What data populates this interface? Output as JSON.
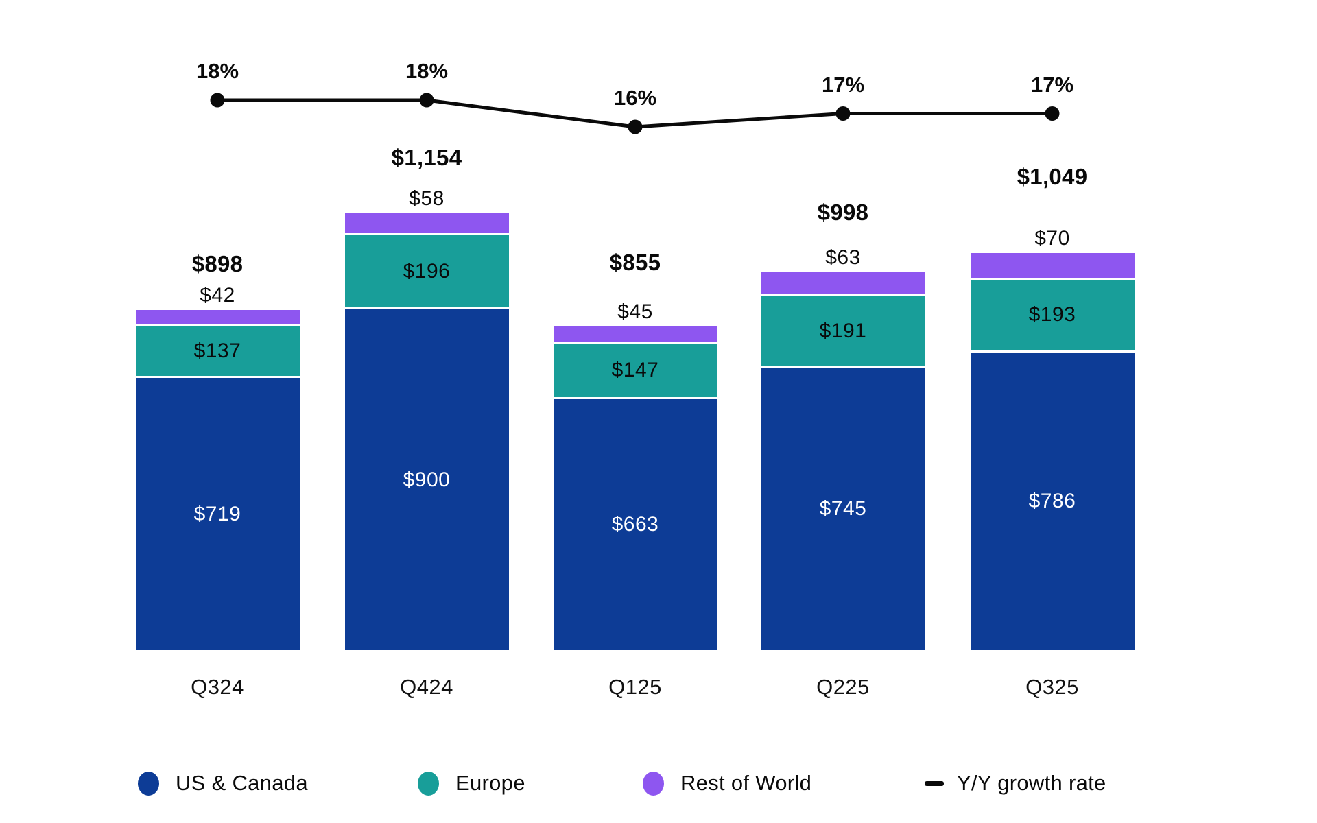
{
  "chart_data": {
    "type": "bar",
    "subtype": "stacked-column-with-growth-line",
    "title": "",
    "xlabel": "",
    "ylabel": "",
    "grid": false,
    "legend_position": "bottom",
    "value_unit": "$M (implied)",
    "categories": [
      "Q324",
      "Q424",
      "Q125",
      "Q225",
      "Q325"
    ],
    "series": [
      {
        "name": "US & Canada",
        "values": [
          719,
          900,
          663,
          745,
          786
        ],
        "labels": [
          "$719",
          "$900",
          "$663",
          "$745",
          "$786"
        ],
        "color": "#0d3c96",
        "label_color": "#ffffff",
        "label_position": "inside"
      },
      {
        "name": "Europe",
        "values": [
          137,
          196,
          147,
          191,
          193
        ],
        "labels": [
          "$137",
          "$196",
          "$147",
          "$191",
          "$193"
        ],
        "color": "#189e99",
        "label_color": "#0a0a0a",
        "label_position": "inside"
      },
      {
        "name": "Rest of World",
        "values": [
          42,
          58,
          45,
          63,
          70
        ],
        "labels": [
          "$42",
          "$58",
          "$45",
          "$63",
          "$70"
        ],
        "color": "#8e56f0",
        "label_color": "#0a0a0a",
        "label_position": "above-bar"
      }
    ],
    "totals": {
      "values": [
        898,
        1154,
        855,
        998,
        1049
      ],
      "labels": [
        "$898",
        "$1,154",
        "$855",
        "$998",
        "$1,049"
      ]
    },
    "line_series": {
      "name": "Y/Y growth rate",
      "values": [
        18,
        18,
        16,
        17,
        17
      ],
      "labels": [
        "18%",
        "18%",
        "16%",
        "17%",
        "17%"
      ],
      "color": "#0a0a0a"
    }
  },
  "legend": {
    "items": [
      {
        "label": "US & Canada",
        "marker": "circle",
        "color": "#0d3c96"
      },
      {
        "label": "Europe",
        "marker": "circle",
        "color": "#189e99"
      },
      {
        "label": "Rest of World",
        "marker": "circle",
        "color": "#8e56f0"
      },
      {
        "label": "Y/Y growth rate",
        "marker": "dash",
        "color": "#0a0a0a"
      }
    ]
  }
}
